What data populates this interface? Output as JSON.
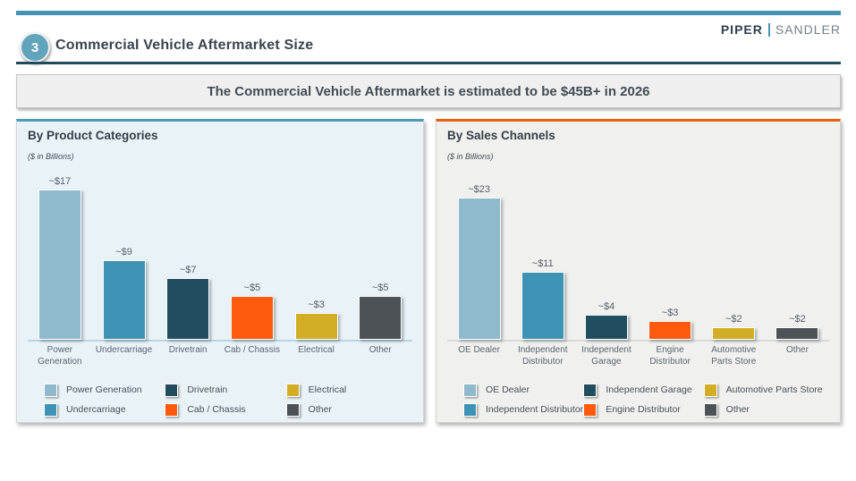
{
  "header": {
    "slide_number": "3",
    "title": "Commercial Vehicle Aftermarket Size",
    "brand": {
      "piper": "PIPER",
      "sandler": "SANDLER"
    }
  },
  "banner": {
    "text": "The Commercial Vehicle Aftermarket is estimated to be $45B+ in 2026"
  },
  "colors": {
    "accent_teal": "#4493b5",
    "dark_teal": "#1e4a5a",
    "panel_left_accent": "#4e9ab6",
    "panel_right_accent": "#e9610e",
    "panel_left_bg": "#e9f2f7",
    "panel_right_bg": "#f0f0ee"
  },
  "chart_data": [
    {
      "type": "bar",
      "title": "By Product Categories",
      "subtitle": "($ in Billions)",
      "unit": "$ in Billions",
      "categories": [
        "Power Generation",
        "Undercarriage",
        "Drivetrain",
        "Cab / Chassis",
        "Electrical",
        "Other"
      ],
      "values": [
        17,
        9,
        7,
        5,
        3,
        5
      ],
      "bar_labels": [
        "~$17",
        "~$9",
        "~$7",
        "~$5",
        "~$3",
        "~$5"
      ],
      "colors": [
        "#8fbacd",
        "#3e93b4",
        "#204e5f",
        "#fd5a0d",
        "#d1ae25",
        "#4d5257"
      ],
      "legend": [
        "Power Generation",
        "Undercarriage",
        "Drivetrain",
        "Cab / Chassis",
        "Electrical",
        "Other"
      ],
      "legend_position": "bottom",
      "grid": false,
      "ylabel": "",
      "xlabel": "",
      "ylim": [
        0,
        18
      ]
    },
    {
      "type": "bar",
      "title": "By Sales Channels",
      "subtitle": "($ in Billions)",
      "unit": "$ in Billions",
      "categories": [
        "OE Dealer",
        "Independent Distributor",
        "Independent Garage",
        "Engine Distributor",
        "Automotive Parts Store",
        "Other"
      ],
      "values": [
        23,
        11,
        4,
        3,
        2,
        2
      ],
      "bar_labels": [
        "~$23",
        "~$11",
        "~$4",
        "~$3",
        "~$2",
        "~$2"
      ],
      "colors": [
        "#8fbacd",
        "#3e93b4",
        "#204e5f",
        "#fd5a0d",
        "#d1ae25",
        "#4d5257"
      ],
      "legend": [
        "OE Dealer",
        "Independent Distributor",
        "Independent Garage",
        "Engine Distributor",
        "Automotive Parts Store",
        "Other"
      ],
      "legend_position": "bottom",
      "grid": false,
      "ylabel": "",
      "xlabel": "",
      "ylim": [
        0,
        24
      ]
    }
  ]
}
